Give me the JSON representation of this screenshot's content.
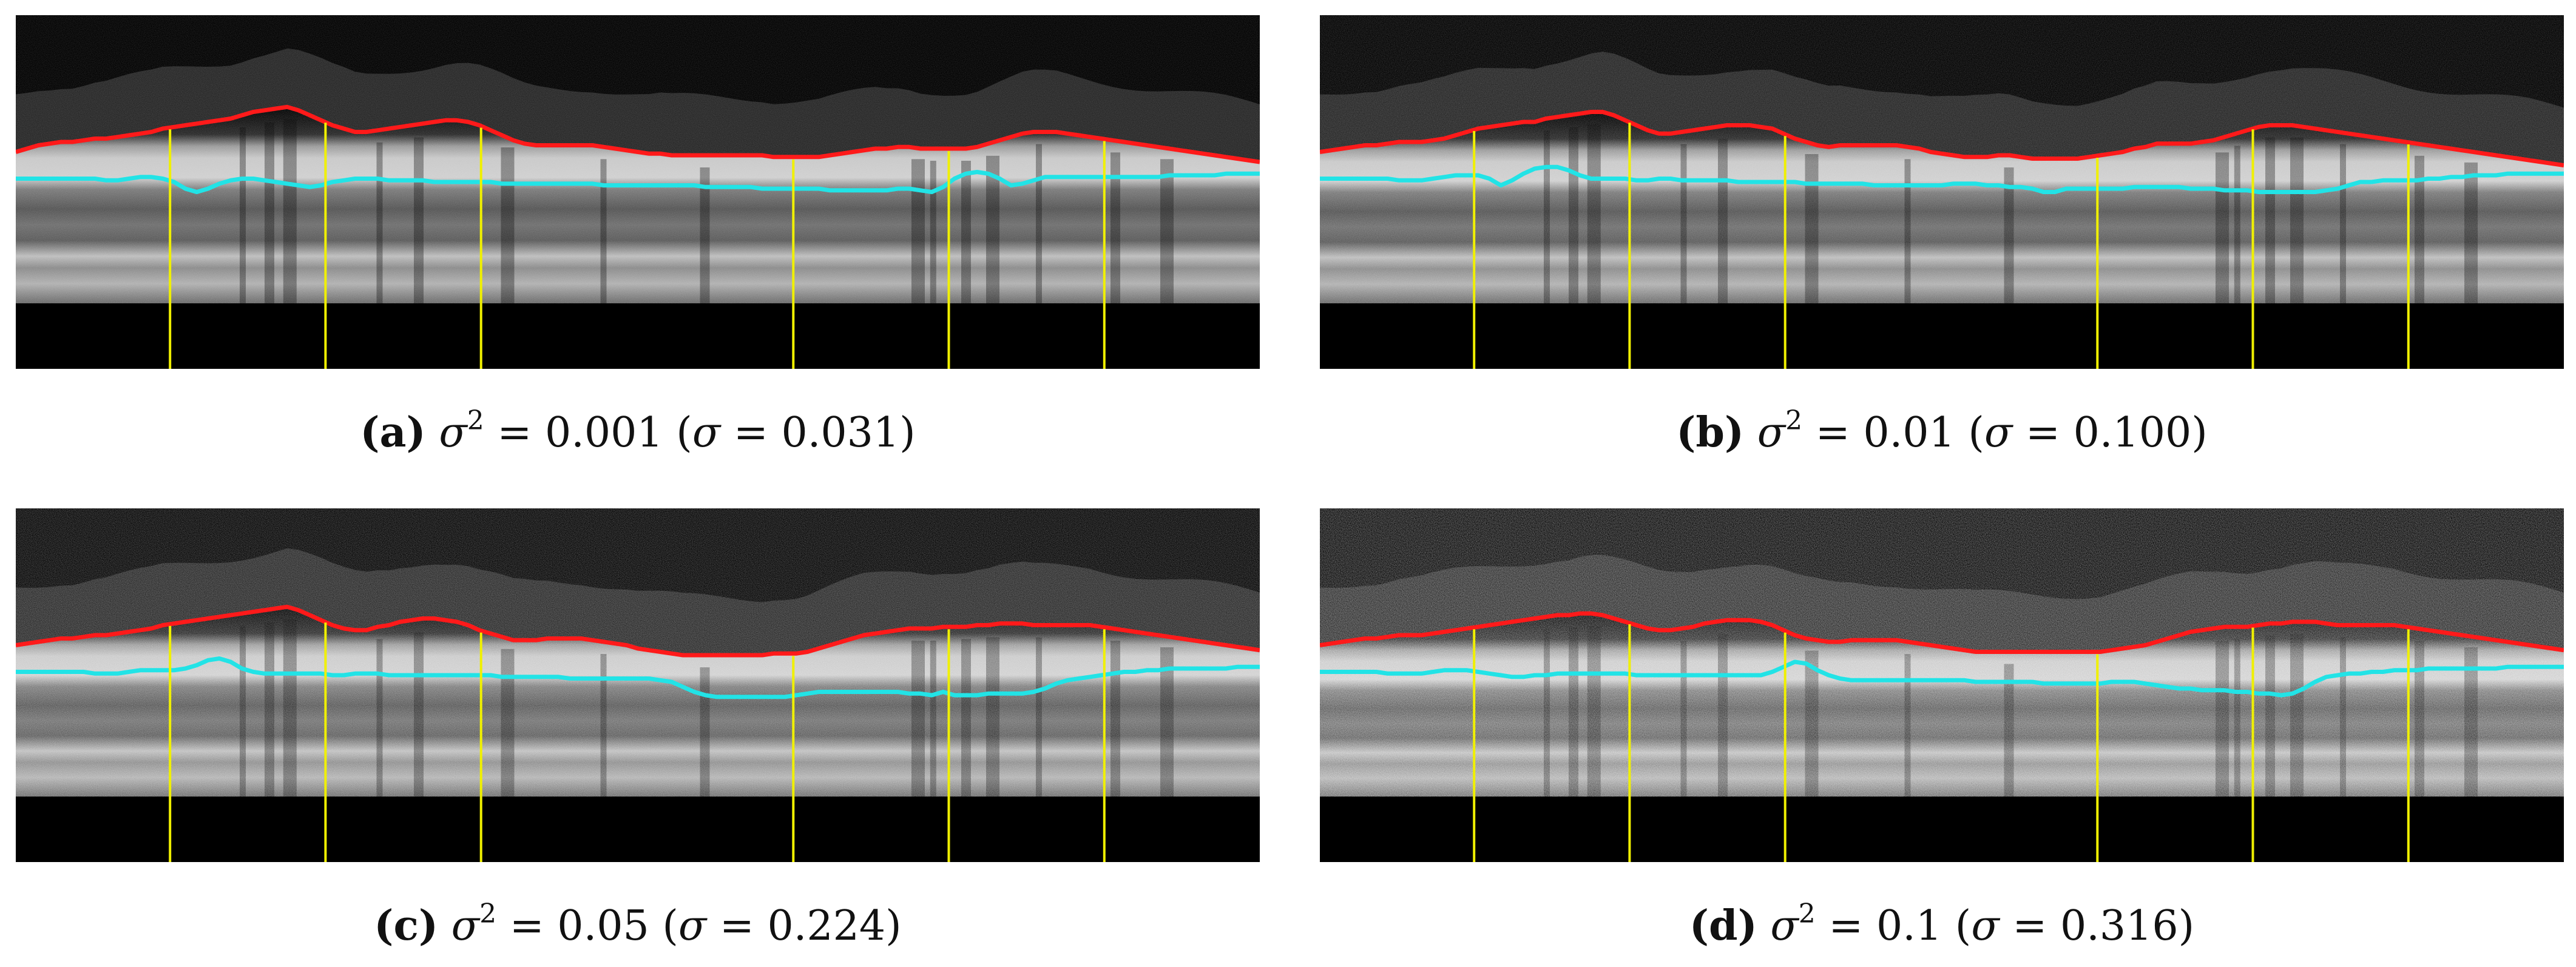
{
  "figure": {
    "panels": [
      {
        "id": "a",
        "caption": {
          "letter": "(a)",
          "sigma_var": "σ",
          "exp": "2",
          "equals_variance": "= 0.001",
          "open_paren": "(",
          "sigma_var_2": "σ",
          "equals_std": "= 0.031)"
        },
        "noise_level": 0.15,
        "red_boundary": [
          82,
          80,
          78,
          77,
          76,
          76,
          75,
          74,
          74,
          73,
          72,
          71,
          70,
          68,
          67,
          66,
          65,
          64,
          63,
          62,
          60,
          58,
          57,
          56,
          55,
          57,
          60,
          63,
          66,
          68,
          70,
          70,
          69,
          68,
          67,
          66,
          65,
          64,
          63,
          63,
          64,
          66,
          69,
          72,
          75,
          77,
          78,
          78,
          78,
          78,
          78,
          78,
          79,
          80,
          81,
          82,
          83,
          83,
          84,
          84,
          84,
          84,
          84,
          84,
          84,
          84,
          84,
          85,
          85,
          85,
          85,
          85,
          84,
          83,
          82,
          81,
          80,
          80,
          79,
          79,
          80,
          80,
          80,
          80,
          80,
          79,
          77,
          75,
          73,
          71,
          70,
          70,
          70,
          71,
          72,
          73,
          74,
          75,
          76,
          77,
          78,
          79,
          80,
          81,
          82,
          83,
          84,
          85,
          86,
          87,
          88
        ],
        "cyan_boundary": [
          98,
          98,
          98,
          98,
          98,
          98,
          98,
          98,
          99,
          99,
          98,
          97,
          97,
          98,
          100,
          104,
          106,
          104,
          101,
          99,
          98,
          98,
          99,
          100,
          101,
          102,
          103,
          102,
          100,
          99,
          98,
          98,
          98,
          99,
          99,
          99,
          99,
          100,
          100,
          100,
          100,
          100,
          100,
          101,
          101,
          101,
          101,
          101,
          101,
          101,
          101,
          101,
          102,
          102,
          102,
          102,
          102,
          102,
          102,
          102,
          102,
          103,
          103,
          103,
          103,
          103,
          104,
          104,
          104,
          104,
          104,
          104,
          105,
          105,
          105,
          105,
          105,
          105,
          104,
          104,
          105,
          106,
          103,
          98,
          95,
          94,
          95,
          98,
          102,
          101,
          99,
          97,
          97,
          97,
          97,
          97,
          97,
          97,
          97,
          97,
          97,
          97,
          96,
          96,
          96,
          96,
          96,
          95,
          95,
          95,
          95
        ]
      },
      {
        "id": "b",
        "caption": {
          "letter": "(b)",
          "sigma_var": "σ",
          "exp": "2",
          "equals_variance": "= 0.01",
          "open_paren": "(",
          "sigma_var_2": "σ",
          "equals_std": "= 0.100)"
        },
        "noise_level": 0.3,
        "red_boundary": [
          82,
          81,
          80,
          79,
          78,
          78,
          77,
          76,
          76,
          76,
          75,
          74,
          72,
          70,
          68,
          67,
          66,
          65,
          64,
          64,
          62,
          61,
          60,
          59,
          58,
          58,
          60,
          63,
          66,
          69,
          71,
          71,
          70,
          69,
          68,
          67,
          66,
          66,
          66,
          67,
          68,
          71,
          74,
          76,
          78,
          79,
          78,
          78,
          78,
          78,
          78,
          78,
          79,
          80,
          82,
          83,
          84,
          85,
          85,
          85,
          84,
          84,
          85,
          86,
          86,
          86,
          86,
          86,
          85,
          84,
          83,
          82,
          80,
          79,
          77,
          77,
          77,
          77,
          76,
          75,
          73,
          71,
          69,
          67,
          66,
          66,
          66,
          67,
          68,
          69,
          70,
          71,
          72,
          73,
          74,
          75,
          76,
          77,
          78,
          79,
          80,
          81,
          82,
          83,
          84,
          85,
          86,
          87,
          88,
          89,
          90
        ],
        "cyan_boundary": [
          98,
          98,
          98,
          98,
          98,
          98,
          98,
          99,
          99,
          99,
          98,
          97,
          96,
          96,
          96,
          98,
          102,
          99,
          95,
          92,
          91,
          91,
          93,
          96,
          98,
          98,
          98,
          98,
          99,
          99,
          98,
          98,
          99,
          99,
          99,
          99,
          99,
          100,
          100,
          100,
          100,
          100,
          100,
          101,
          101,
          101,
          101,
          101,
          101,
          102,
          102,
          102,
          102,
          102,
          102,
          102,
          101,
          101,
          101,
          102,
          102,
          103,
          103,
          104,
          106,
          106,
          104,
          104,
          104,
          104,
          104,
          104,
          103,
          103,
          103,
          103,
          103,
          104,
          104,
          104,
          105,
          105,
          105,
          106,
          106,
          106,
          106,
          106,
          106,
          105,
          104,
          102,
          100,
          100,
          99,
          99,
          99,
          99,
          98,
          98,
          97,
          97,
          96,
          96,
          96,
          95,
          95,
          95,
          95,
          95,
          95
        ]
      },
      {
        "id": "c",
        "caption": {
          "letter": "(c)",
          "sigma_var": "σ",
          "exp": "2",
          "equals_variance": "= 0.05",
          "open_paren": "(",
          "sigma_var_2": "σ",
          "equals_std": "= 0.224)"
        },
        "noise_level": 0.55,
        "red_boundary": [
          82,
          81,
          80,
          79,
          78,
          78,
          77,
          76,
          76,
          75,
          74,
          73,
          72,
          70,
          69,
          68,
          67,
          66,
          65,
          64,
          63,
          62,
          61,
          60,
          59,
          61,
          64,
          67,
          70,
          72,
          73,
          73,
          71,
          70,
          68,
          67,
          66,
          66,
          67,
          68,
          70,
          73,
          75,
          77,
          79,
          79,
          79,
          78,
          78,
          78,
          78,
          79,
          80,
          81,
          82,
          84,
          85,
          86,
          87,
          88,
          88,
          88,
          88,
          88,
          88,
          88,
          88,
          87,
          87,
          87,
          86,
          84,
          82,
          80,
          78,
          76,
          75,
          74,
          73,
          72,
          72,
          72,
          71,
          71,
          71,
          70,
          70,
          69,
          69,
          69,
          70,
          70,
          70,
          70,
          70,
          70,
          71,
          72,
          73,
          74,
          75,
          76,
          77,
          78,
          79,
          80,
          81,
          82,
          83,
          84,
          85
        ],
        "cyan_boundary": [
          98,
          98,
          98,
          98,
          98,
          98,
          98,
          99,
          99,
          99,
          98,
          97,
          97,
          97,
          97,
          96,
          94,
          91,
          90,
          92,
          96,
          98,
          99,
          99,
          99,
          99,
          99,
          99,
          100,
          100,
          99,
          99,
          99,
          100,
          100,
          100,
          100,
          100,
          100,
          100,
          100,
          100,
          100,
          101,
          101,
          101,
          101,
          101,
          101,
          102,
          102,
          102,
          102,
          102,
          102,
          102,
          102,
          103,
          104,
          107,
          110,
          112,
          113,
          113,
          113,
          113,
          113,
          113,
          113,
          112,
          111,
          110,
          110,
          110,
          110,
          110,
          110,
          110,
          110,
          111,
          111,
          112,
          110,
          112,
          112,
          112,
          111,
          111,
          111,
          111,
          110,
          108,
          105,
          103,
          102,
          101,
          100,
          99,
          98,
          98,
          97,
          97,
          96,
          96,
          96,
          96,
          96,
          96,
          95,
          95,
          95
        ]
      },
      {
        "id": "d",
        "caption": {
          "letter": "(d)",
          "sigma_var": "σ",
          "exp": "2",
          "equals_variance": "= 0.1",
          "open_paren": "(",
          "sigma_var_2": "σ",
          "equals_std": "= 0.316)"
        },
        "noise_level": 0.8,
        "red_boundary": [
          82,
          81,
          80,
          79,
          78,
          78,
          77,
          76,
          76,
          76,
          75,
          74,
          73,
          72,
          71,
          70,
          69,
          68,
          67,
          66,
          65,
          64,
          64,
          63,
          63,
          64,
          66,
          68,
          70,
          72,
          73,
          73,
          72,
          71,
          69,
          68,
          67,
          67,
          67,
          68,
          70,
          73,
          76,
          78,
          79,
          80,
          80,
          79,
          79,
          79,
          79,
          79,
          80,
          81,
          82,
          83,
          84,
          85,
          86,
          86,
          86,
          86,
          86,
          86,
          86,
          86,
          86,
          86,
          86,
          86,
          85,
          84,
          83,
          82,
          80,
          78,
          76,
          74,
          73,
          72,
          71,
          71,
          71,
          70,
          69,
          69,
          68,
          68,
          68,
          69,
          70,
          70,
          70,
          70,
          70,
          70,
          71,
          72,
          73,
          74,
          75,
          76,
          77,
          78,
          79,
          80,
          81,
          82,
          83,
          84,
          85
        ],
        "cyan_boundary": [
          98,
          98,
          98,
          98,
          98,
          98,
          99,
          99,
          99,
          99,
          98,
          97,
          97,
          97,
          98,
          99,
          100,
          101,
          101,
          100,
          100,
          99,
          99,
          99,
          99,
          99,
          99,
          99,
          100,
          100,
          100,
          100,
          100,
          100,
          100,
          100,
          100,
          100,
          100,
          100,
          98,
          95,
          92,
          93,
          97,
          100,
          102,
          103,
          103,
          103,
          103,
          103,
          103,
          103,
          103,
          103,
          103,
          103,
          104,
          104,
          104,
          104,
          104,
          104,
          105,
          105,
          105,
          105,
          105,
          105,
          104,
          104,
          104,
          105,
          106,
          107,
          108,
          108,
          109,
          109,
          109,
          110,
          110,
          111,
          111,
          112,
          111,
          108,
          104,
          101,
          100,
          99,
          99,
          98,
          98,
          97,
          97,
          97,
          96,
          96,
          96,
          96,
          96,
          96,
          96,
          95,
          95,
          95,
          95,
          95,
          95
        ]
      }
    ],
    "yellow_line_columns": [
      0.124,
      0.249,
      0.374,
      0.625,
      0.75,
      0.875
    ],
    "colors": {
      "background": "#ffffff",
      "image_bg": "#000000",
      "red_boundary": "#ff1a1a",
      "cyan_boundary": "#22e3e6",
      "yellow_lines": "#f0f000",
      "caption_text": "#111111"
    }
  }
}
